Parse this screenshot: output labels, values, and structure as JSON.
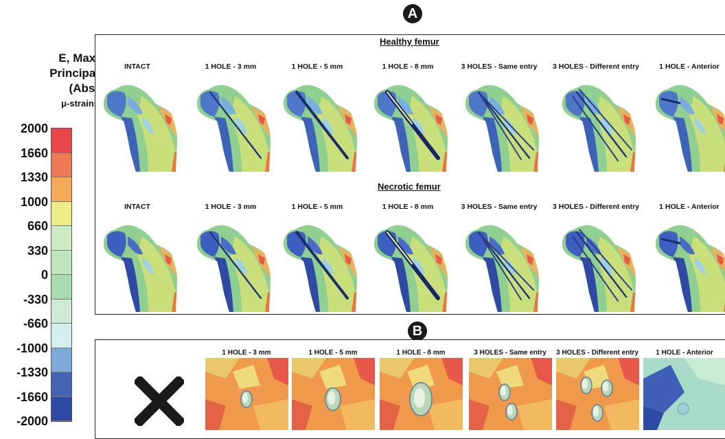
{
  "panel_a_letter": "A",
  "panel_b_letter": "B",
  "legend": {
    "title_line1": "E, Max.",
    "title_line2": "Principal",
    "title_line3": "(Abs)",
    "unit": "μ-strains",
    "ticks": [
      "2000",
      "1660",
      "1330",
      "1000",
      "660",
      "330",
      "0",
      "-330",
      "-660",
      "-1000",
      "-1330",
      "-1660",
      "-2000"
    ],
    "colors": [
      "#e8484a",
      "#ee7a55",
      "#f3a955",
      "#eded8a",
      "#cdebc3",
      "#bfe6bd",
      "#a8dbb0",
      "#cfead7",
      "#d3efef",
      "#7ea9dc",
      "#4563b4",
      "#2f4aa4"
    ]
  },
  "healthy": {
    "title": "Healthy femur",
    "labels": [
      "INTACT",
      "1 HOLE - 3 mm",
      "1 HOLE - 5 mm",
      "1 HOLE - 8 mm",
      "3 HOLES - Same entry",
      "3 HOLES - Different entry",
      "1 HOLE - Anterior"
    ]
  },
  "necrotic": {
    "title": "Necrotic femur",
    "labels": [
      "INTACT",
      "1 HOLE - 3 mm",
      "1 HOLE - 5 mm",
      "1 HOLE - 8 mm",
      "3 HOLES - Same entry",
      "3 HOLES - Different entry",
      "1 HOLE - Anterior"
    ]
  },
  "closeups": {
    "labels": [
      "1 HOLE - 3 mm",
      "1 HOLE - 5 mm",
      "1 HOLE - 8 mm",
      "3 HOLES - Same entry",
      "3 HOLES - Different entry",
      "1 HOLE - Anterior"
    ]
  }
}
